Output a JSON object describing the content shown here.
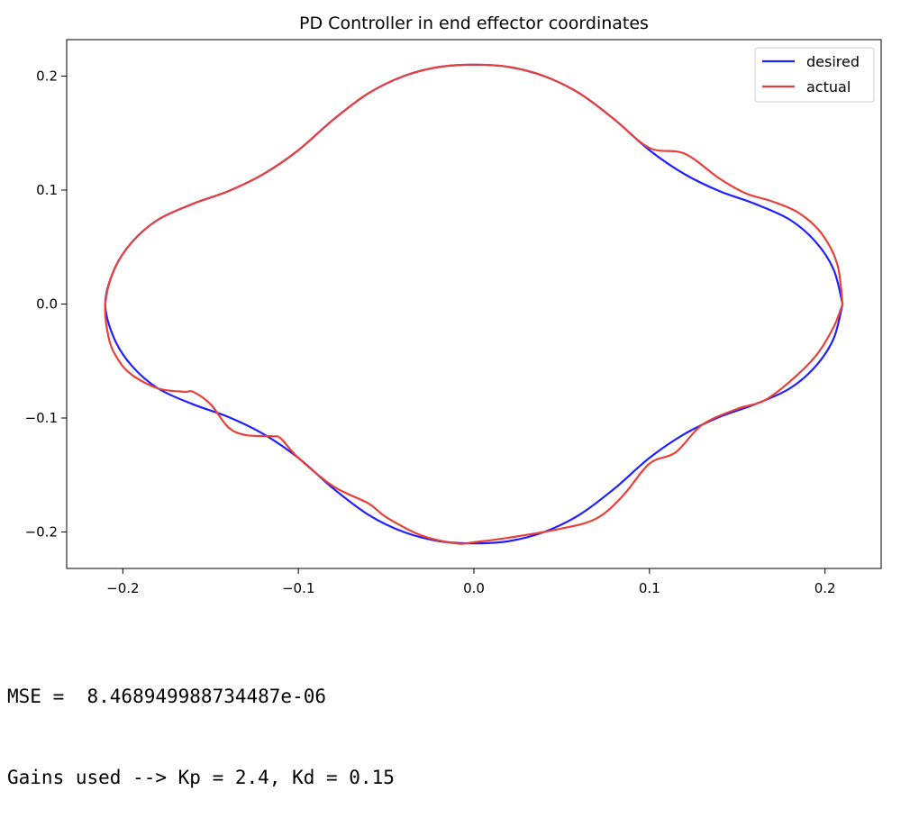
{
  "chart_data": {
    "type": "line",
    "title": "PD Controller in end effector coordinates",
    "xlabel": "",
    "ylabel": "",
    "xlim": [
      -0.232,
      0.232
    ],
    "ylim": [
      -0.232,
      0.232
    ],
    "xticks": [
      -0.2,
      -0.1,
      0.0,
      0.1,
      0.2
    ],
    "xtick_labels": [
      "−0.2",
      "−0.1",
      "0.0",
      "0.1",
      "0.2"
    ],
    "yticks": [
      0.2,
      0.1,
      0.0,
      -0.1,
      -0.2
    ],
    "ytick_labels": [
      "0.2",
      "0.1",
      "0.0",
      "−0.1",
      "−0.2"
    ],
    "grid": false,
    "legend_position": "upper right",
    "series": [
      {
        "name": "desired",
        "color": "#1f1fff",
        "x": [
          0.21,
          0.205,
          0.195,
          0.18,
          0.16,
          0.14,
          0.12,
          0.1,
          0.08,
          0.06,
          0.04,
          0.02,
          0.0,
          -0.02,
          -0.04,
          -0.06,
          -0.08,
          -0.1,
          -0.12,
          -0.14,
          -0.16,
          -0.18,
          -0.195,
          -0.205,
          -0.21,
          -0.205,
          -0.195,
          -0.18,
          -0.16,
          -0.14,
          -0.12,
          -0.1,
          -0.08,
          -0.06,
          -0.04,
          -0.02,
          0.0,
          0.02,
          0.04,
          0.06,
          0.08,
          0.1,
          0.12,
          0.14,
          0.16,
          0.18,
          0.195,
          0.205,
          0.21
        ],
        "y": [
          0.0,
          0.03,
          0.054,
          0.074,
          0.088,
          0.099,
          0.114,
          0.135,
          0.162,
          0.185,
          0.2,
          0.208,
          0.21,
          0.208,
          0.2,
          0.185,
          0.162,
          0.135,
          0.114,
          0.099,
          0.088,
          0.074,
          0.054,
          0.03,
          0.0,
          -0.03,
          -0.054,
          -0.074,
          -0.088,
          -0.099,
          -0.114,
          -0.135,
          -0.162,
          -0.185,
          -0.2,
          -0.208,
          -0.21,
          -0.208,
          -0.2,
          -0.185,
          -0.162,
          -0.135,
          -0.114,
          -0.099,
          -0.088,
          -0.074,
          -0.054,
          -0.03,
          0.0
        ]
      },
      {
        "name": "actual",
        "color": "#e8403a",
        "x": [
          0.21,
          0.207,
          0.198,
          0.185,
          0.17,
          0.155,
          0.14,
          0.12,
          0.1,
          0.08,
          0.06,
          0.04,
          0.02,
          0.0,
          -0.02,
          -0.04,
          -0.06,
          -0.08,
          -0.1,
          -0.12,
          -0.14,
          -0.16,
          -0.18,
          -0.195,
          -0.205,
          -0.21,
          -0.208,
          -0.203,
          -0.195,
          -0.18,
          -0.165,
          -0.16,
          -0.15,
          -0.14,
          -0.13,
          -0.115,
          -0.11,
          -0.1,
          -0.08,
          -0.06,
          -0.05,
          -0.03,
          -0.01,
          0.0,
          0.02,
          0.05,
          0.07,
          0.085,
          0.1,
          0.115,
          0.13,
          0.15,
          0.165,
          0.18,
          0.195,
          0.205,
          0.21
        ],
        "y": [
          0.0,
          0.035,
          0.062,
          0.08,
          0.09,
          0.097,
          0.11,
          0.132,
          0.137,
          0.162,
          0.185,
          0.2,
          0.208,
          0.21,
          0.208,
          0.2,
          0.185,
          0.162,
          0.135,
          0.114,
          0.099,
          0.088,
          0.074,
          0.054,
          0.03,
          0.0,
          -0.03,
          -0.048,
          -0.062,
          -0.074,
          -0.077,
          -0.077,
          -0.088,
          -0.108,
          -0.115,
          -0.116,
          -0.118,
          -0.135,
          -0.16,
          -0.175,
          -0.187,
          -0.203,
          -0.21,
          -0.209,
          -0.205,
          -0.197,
          -0.188,
          -0.168,
          -0.14,
          -0.13,
          -0.106,
          -0.092,
          -0.085,
          -0.068,
          -0.045,
          -0.02,
          0.0
        ]
      }
    ]
  },
  "output": {
    "mse_line": "MSE =  8.468949988734487e-06",
    "gains_line": "Gains used --> Kp = 2.4, Kd = 0.15"
  }
}
